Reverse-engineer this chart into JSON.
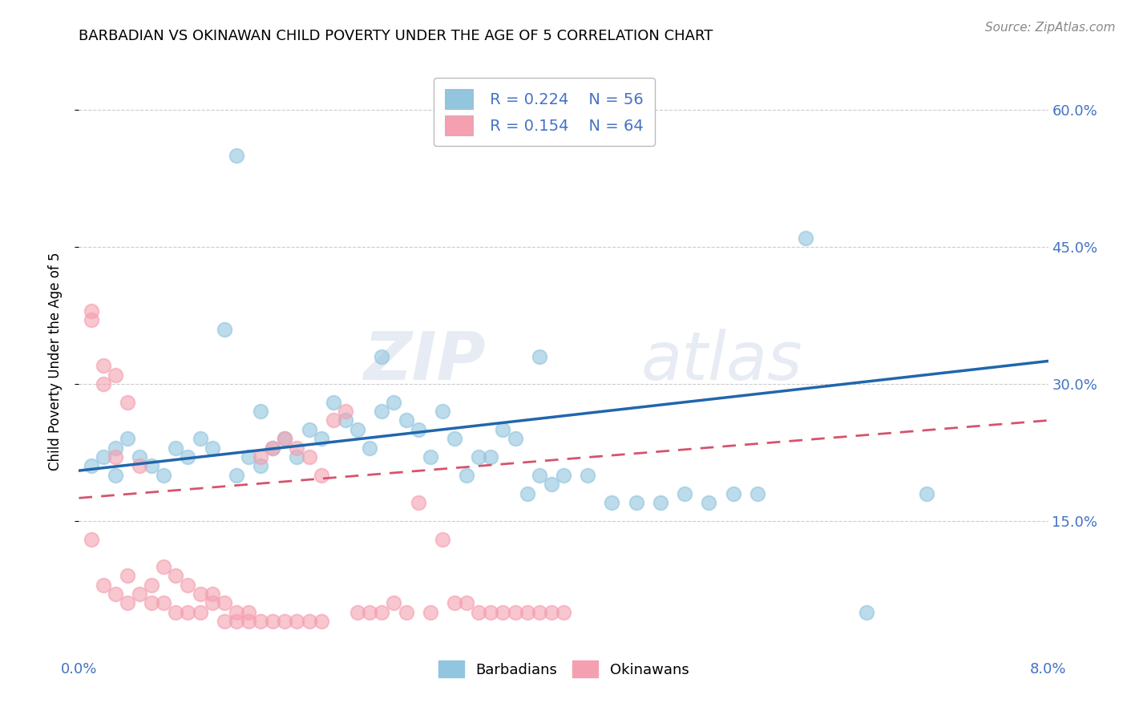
{
  "title": "BARBADIAN VS OKINAWAN CHILD POVERTY UNDER THE AGE OF 5 CORRELATION CHART",
  "source": "Source: ZipAtlas.com",
  "ylabel": "Child Poverty Under the Age of 5",
  "ytick_labels": [
    "15.0%",
    "30.0%",
    "45.0%",
    "60.0%"
  ],
  "ytick_values": [
    0.15,
    0.3,
    0.45,
    0.6
  ],
  "xlim": [
    0.0,
    0.08
  ],
  "ylim": [
    0.0,
    0.65
  ],
  "xtick_left": "0.0%",
  "xtick_right": "8.0%",
  "legend_r1": "R = 0.224",
  "legend_n1": "N = 56",
  "legend_r2": "R = 0.154",
  "legend_n2": "N = 64",
  "color_blue": "#92c5de",
  "color_pink": "#f4a0b0",
  "color_blue_line": "#2166ac",
  "color_pink_line": "#d6536d",
  "color_axis_text": "#4472c4",
  "watermark_zip": "ZIP",
  "watermark_atlas": "atlas",
  "barbadian_x": [
    0.001,
    0.002,
    0.003,
    0.003,
    0.004,
    0.005,
    0.006,
    0.007,
    0.008,
    0.009,
    0.01,
    0.011,
    0.012,
    0.013,
    0.014,
    0.015,
    0.015,
    0.016,
    0.017,
    0.018,
    0.019,
    0.02,
    0.021,
    0.022,
    0.023,
    0.024,
    0.025,
    0.026,
    0.027,
    0.028,
    0.029,
    0.03,
    0.031,
    0.032,
    0.033,
    0.034,
    0.035,
    0.036,
    0.037,
    0.038,
    0.039,
    0.04,
    0.042,
    0.044,
    0.046,
    0.048,
    0.05,
    0.052,
    0.054,
    0.056,
    0.013,
    0.025,
    0.038,
    0.06,
    0.065,
    0.07
  ],
  "barbadian_y": [
    0.21,
    0.22,
    0.2,
    0.23,
    0.24,
    0.22,
    0.21,
    0.2,
    0.23,
    0.22,
    0.24,
    0.23,
    0.36,
    0.2,
    0.22,
    0.27,
    0.21,
    0.23,
    0.24,
    0.22,
    0.25,
    0.24,
    0.28,
    0.26,
    0.25,
    0.23,
    0.27,
    0.28,
    0.26,
    0.25,
    0.22,
    0.27,
    0.24,
    0.2,
    0.22,
    0.22,
    0.25,
    0.24,
    0.18,
    0.2,
    0.19,
    0.2,
    0.2,
    0.17,
    0.17,
    0.17,
    0.18,
    0.17,
    0.18,
    0.18,
    0.55,
    0.33,
    0.33,
    0.46,
    0.05,
    0.18
  ],
  "okinawan_x": [
    0.001,
    0.001,
    0.002,
    0.002,
    0.003,
    0.003,
    0.004,
    0.004,
    0.005,
    0.005,
    0.006,
    0.006,
    0.007,
    0.007,
    0.008,
    0.008,
    0.009,
    0.009,
    0.01,
    0.01,
    0.011,
    0.011,
    0.012,
    0.012,
    0.013,
    0.013,
    0.014,
    0.014,
    0.015,
    0.015,
    0.016,
    0.016,
    0.017,
    0.017,
    0.018,
    0.018,
    0.019,
    0.019,
    0.02,
    0.02,
    0.021,
    0.022,
    0.023,
    0.024,
    0.025,
    0.026,
    0.027,
    0.028,
    0.029,
    0.03,
    0.031,
    0.032,
    0.033,
    0.034,
    0.035,
    0.036,
    0.037,
    0.038,
    0.039,
    0.04,
    0.001,
    0.002,
    0.003,
    0.004
  ],
  "okinawan_y": [
    0.37,
    0.13,
    0.3,
    0.08,
    0.22,
    0.07,
    0.09,
    0.06,
    0.21,
    0.07,
    0.08,
    0.06,
    0.1,
    0.06,
    0.09,
    0.05,
    0.08,
    0.05,
    0.07,
    0.05,
    0.07,
    0.06,
    0.06,
    0.04,
    0.05,
    0.04,
    0.05,
    0.04,
    0.22,
    0.04,
    0.23,
    0.04,
    0.24,
    0.04,
    0.23,
    0.04,
    0.22,
    0.04,
    0.2,
    0.04,
    0.26,
    0.27,
    0.05,
    0.05,
    0.05,
    0.06,
    0.05,
    0.17,
    0.05,
    0.13,
    0.06,
    0.06,
    0.05,
    0.05,
    0.05,
    0.05,
    0.05,
    0.05,
    0.05,
    0.05,
    0.38,
    0.32,
    0.31,
    0.28
  ]
}
